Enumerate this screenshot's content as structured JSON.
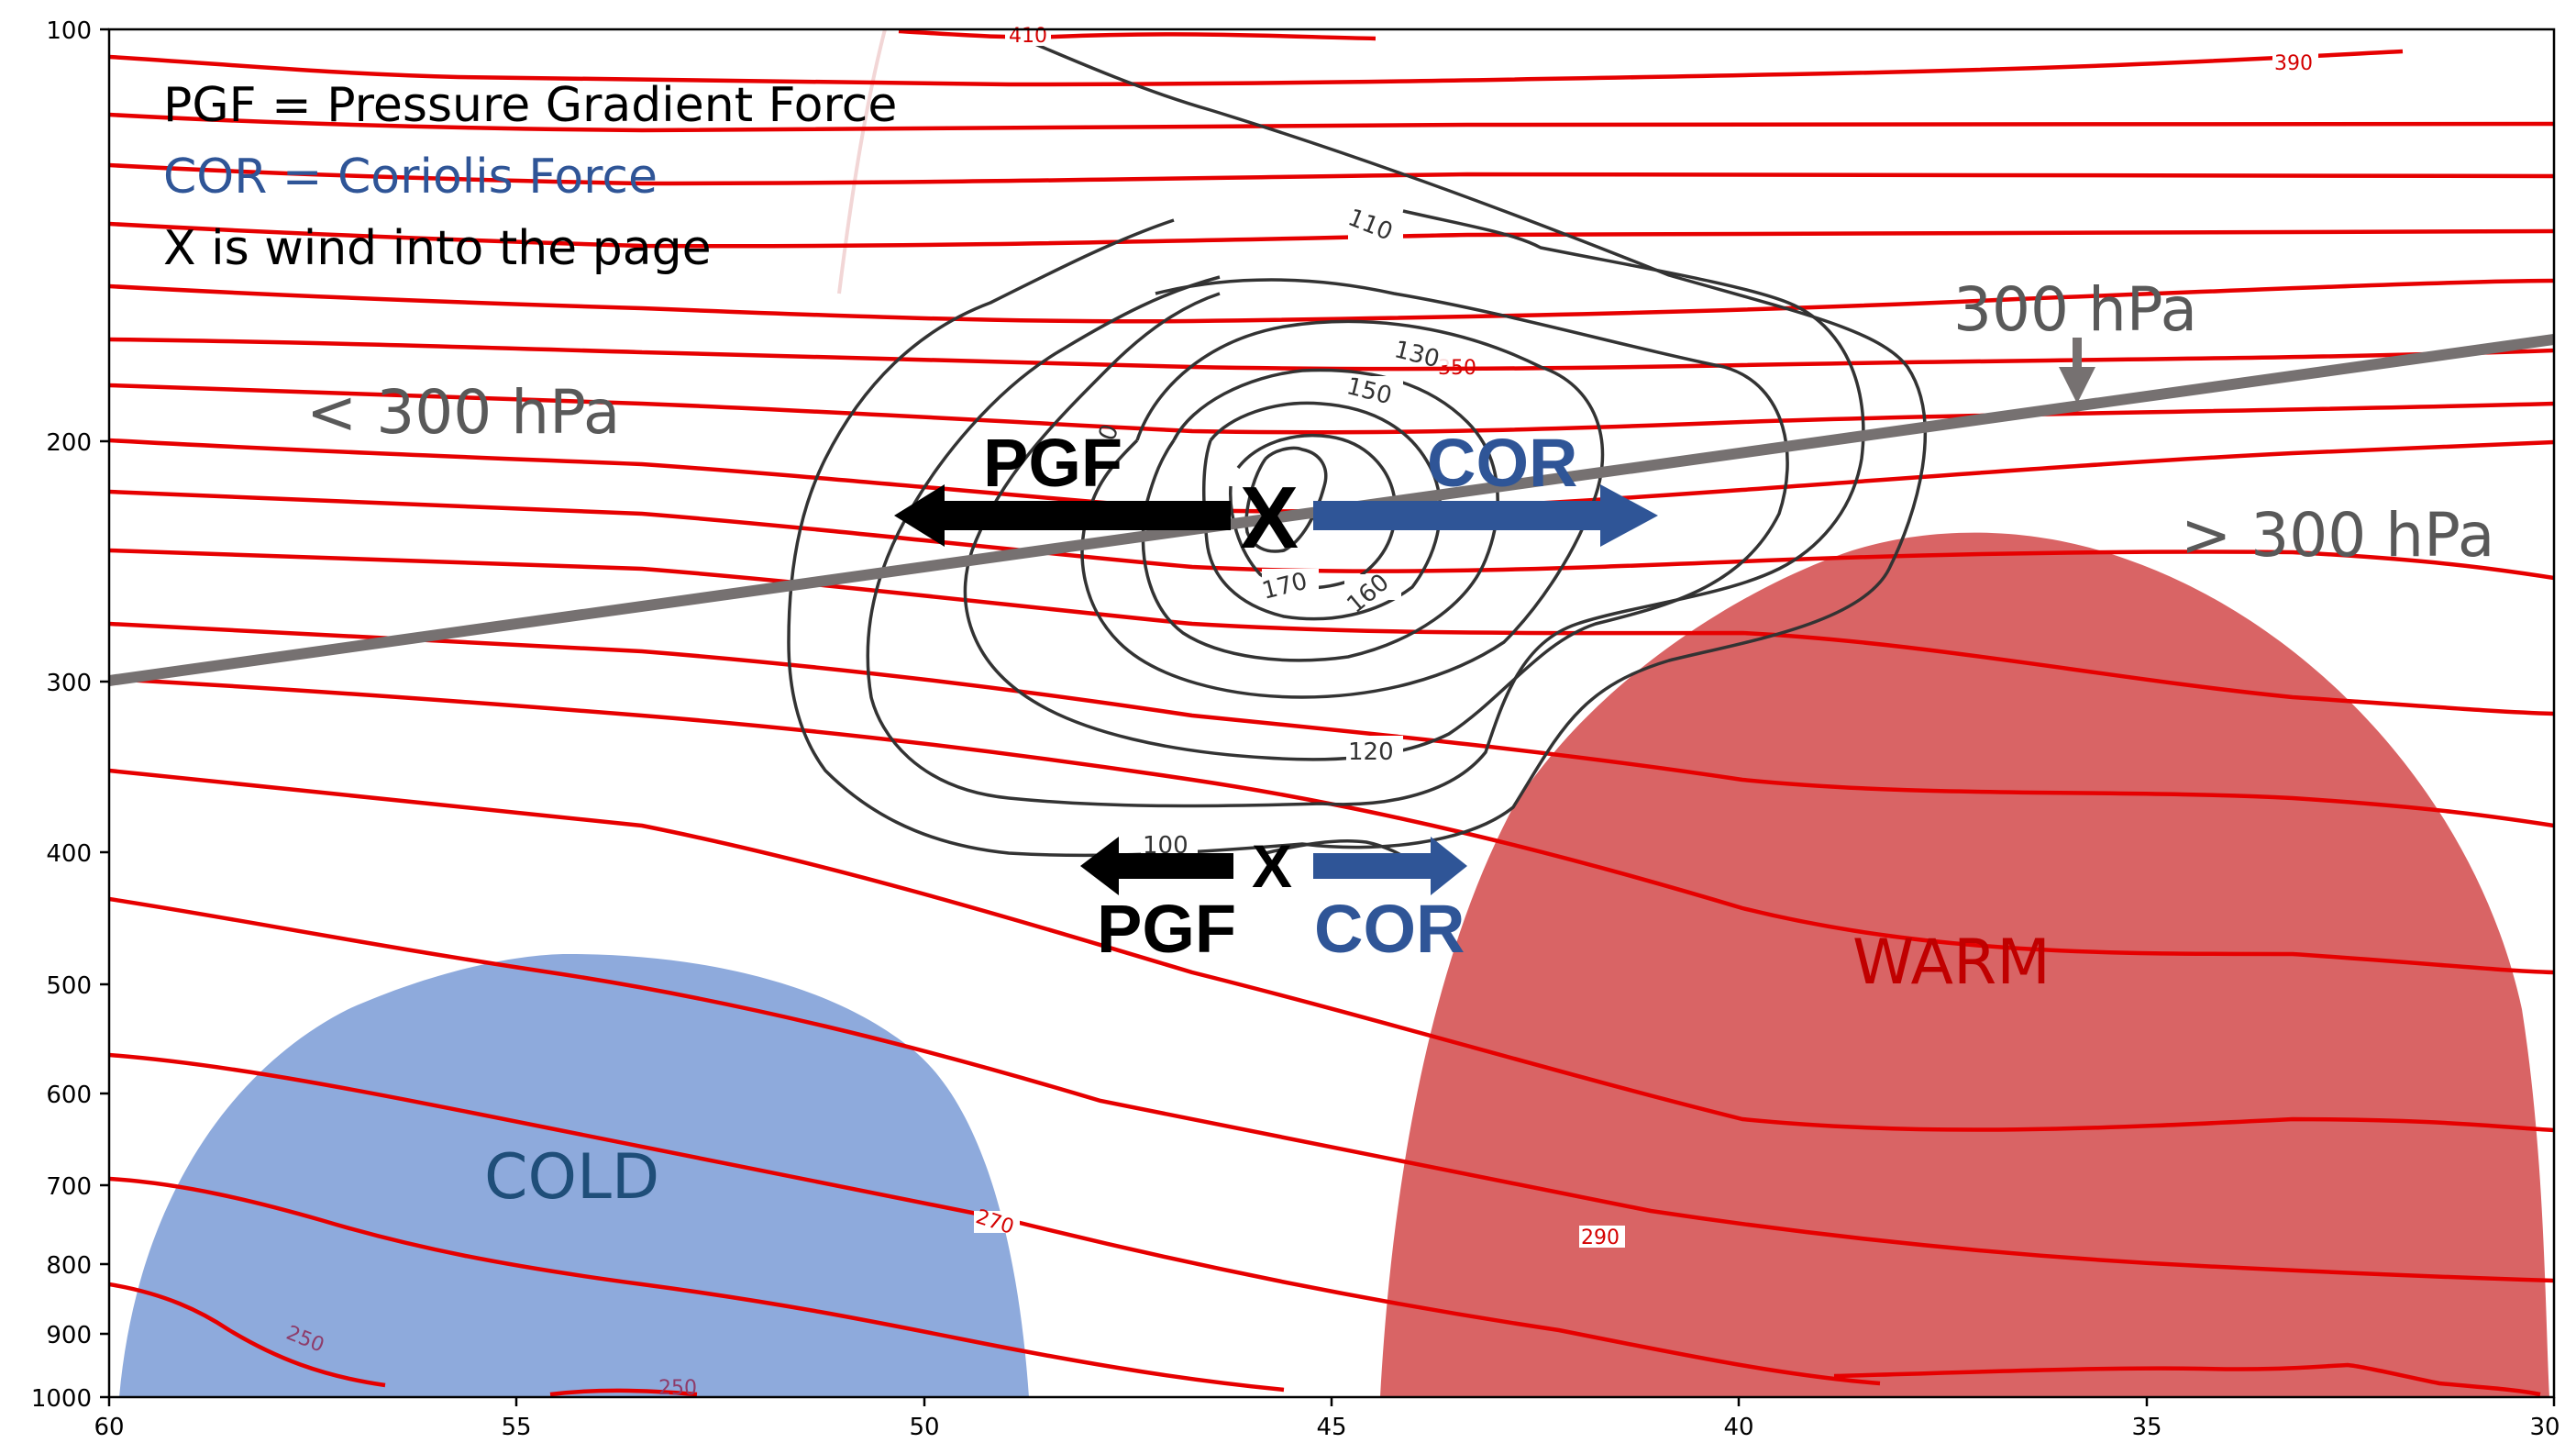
{
  "legend": {
    "pgf_line": "PGF = Pressure Gradient Force",
    "cor_line": "COR = Coriolis Force",
    "x_line": "X is wind into the page"
  },
  "annotations": {
    "level_300": "300 hPa",
    "below_300": "< 300 hPa",
    "above_300": "> 300 hPa",
    "pgf_upper": "PGF",
    "cor_upper": "COR",
    "x_upper": "X",
    "pgf_lower": "PGF",
    "cor_lower": "COR",
    "x_lower": "X",
    "cold": "COLD",
    "warm": "WARM"
  },
  "colors": {
    "isentrope": "#e60000",
    "isotach": "#333333",
    "cold_fill": "#8eaadc",
    "warm_fill": "#d96465",
    "cor_arrow": "#2f5597",
    "pgf_arrow": "#000000",
    "level_line": "#767171",
    "cold_text": "#1f4e79",
    "warm_text": "#c00000"
  },
  "chart_data": {
    "type": "contour",
    "x_axis": {
      "ticks": [
        "60",
        "55",
        "50",
        "45",
        "40",
        "35",
        "30"
      ],
      "range": [
        60,
        30
      ]
    },
    "y_axis": {
      "ticks": [
        "100",
        "200",
        "300",
        "400",
        "500",
        "600",
        "700",
        "800",
        "900",
        "1000"
      ],
      "scale": "log",
      "range": [
        1000,
        100
      ]
    },
    "isentrope_labels": [
      "410",
      "390",
      "350",
      "290",
      "270",
      "250",
      "250"
    ],
    "isotach_labels": [
      "110",
      "130",
      "150",
      "170",
      "160",
      "120",
      "100",
      "0"
    ]
  }
}
